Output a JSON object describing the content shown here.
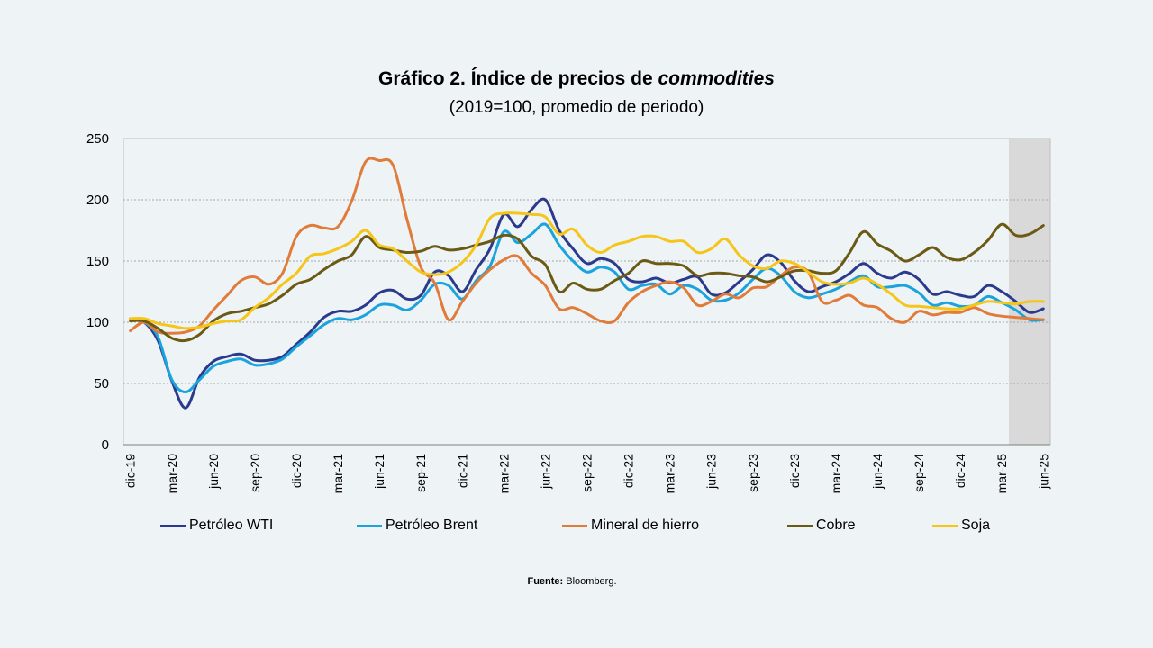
{
  "title_main": "Gráfico 2. Índice de precios de ",
  "title_emph": "commodities",
  "subtitle": "(2019=100, promedio de periodo)",
  "source_label": "Fuente:",
  "source_text": " Bloomberg.",
  "chart_data": {
    "type": "line",
    "title": "Gráfico 2. Índice de precios de commodities",
    "subtitle": "(2019=100, promedio de periodo)",
    "ylim": [
      0,
      250
    ],
    "yticks": [
      0,
      50,
      100,
      150,
      200,
      250
    ],
    "grid": true,
    "legend_position": "bottom",
    "x_tick_labels": [
      "dic-19",
      "mar-20",
      "jun-20",
      "sep-20",
      "dic-20",
      "mar-21",
      "jun-21",
      "sep-21",
      "dic-21",
      "mar-22",
      "jun-22",
      "sep-22",
      "dic-22",
      "mar-23",
      "jun-23",
      "sep-23",
      "dic-23",
      "mar-24",
      "jun-24",
      "sep-24",
      "dic-24",
      "mar-25",
      "jun-25"
    ],
    "x": [
      "dic-19",
      "ene-20",
      "feb-20",
      "mar-20",
      "abr-20",
      "may-20",
      "jun-20",
      "jul-20",
      "ago-20",
      "sep-20",
      "oct-20",
      "nov-20",
      "dic-20",
      "ene-21",
      "feb-21",
      "mar-21",
      "abr-21",
      "may-21",
      "jun-21",
      "jul-21",
      "ago-21",
      "sep-21",
      "oct-21",
      "nov-21",
      "dic-21",
      "ene-22",
      "feb-22",
      "mar-22",
      "abr-22",
      "may-22",
      "jun-22",
      "jul-22",
      "ago-22",
      "sep-22",
      "oct-22",
      "nov-22",
      "dic-22",
      "ene-23",
      "feb-23",
      "mar-23",
      "abr-23",
      "may-23",
      "jun-23",
      "jul-23",
      "ago-23",
      "sep-23",
      "oct-23",
      "nov-23",
      "dic-23",
      "ene-24",
      "feb-24",
      "mar-24",
      "abr-24",
      "may-24",
      "jun-24",
      "jul-24",
      "ago-24",
      "sep-24",
      "oct-24",
      "nov-24",
      "dic-24",
      "ene-25",
      "feb-25",
      "mar-25",
      "abr-25",
      "may-25",
      "jun-25"
    ],
    "shaded_region": {
      "from": "abr-25",
      "to": "jun-25",
      "color": "#d9d9d9"
    },
    "series": [
      {
        "name": "Petróleo WTI",
        "color": "#2b3a8c",
        "values": [
          103,
          100,
          85,
          52,
          30,
          55,
          68,
          72,
          74,
          69,
          69,
          72,
          82,
          92,
          104,
          109,
          109,
          114,
          124,
          126,
          119,
          122,
          141,
          138,
          125,
          143,
          160,
          188,
          178,
          192,
          200,
          175,
          160,
          148,
          152,
          148,
          135,
          133,
          136,
          132,
          135,
          137,
          123,
          124,
          133,
          143,
          155,
          149,
          134,
          125,
          129,
          133,
          140,
          148,
          140,
          136,
          141,
          135,
          123,
          125,
          122,
          121,
          130,
          125,
          117,
          108,
          111
        ]
      },
      {
        "name": "Petróleo Brent",
        "color": "#1aa3dd",
        "values": [
          102,
          100,
          88,
          53,
          43,
          53,
          64,
          68,
          70,
          65,
          66,
          70,
          80,
          89,
          98,
          103,
          102,
          106,
          114,
          114,
          110,
          118,
          131,
          130,
          119,
          134,
          146,
          174,
          165,
          172,
          180,
          163,
          150,
          141,
          145,
          141,
          127,
          130,
          131,
          123,
          130,
          127,
          118,
          118,
          124,
          135,
          144,
          138,
          125,
          120,
          123,
          127,
          133,
          138,
          129,
          129,
          130,
          124,
          114,
          116,
          113,
          114,
          121,
          116,
          110,
          102,
          102
        ]
      },
      {
        "name": "Mineral de hierro",
        "color": "#e07b39",
        "values": [
          93,
          100,
          92,
          91,
          92,
          97,
          110,
          122,
          134,
          137,
          131,
          140,
          170,
          179,
          177,
          178,
          199,
          231,
          232,
          228,
          184,
          145,
          132,
          102,
          117,
          132,
          143,
          151,
          154,
          140,
          130,
          111,
          112,
          107,
          101,
          101,
          116,
          125,
          130,
          133,
          128,
          114,
          117,
          123,
          120,
          128,
          129,
          138,
          145,
          141,
          117,
          118,
          122,
          114,
          112,
          103,
          100,
          109,
          106,
          108,
          108,
          112,
          107,
          105,
          104,
          103,
          102
        ]
      },
      {
        "name": "Cobre",
        "color": "#6b5a14",
        "values": [
          101,
          101,
          95,
          87,
          85,
          90,
          101,
          107,
          109,
          112,
          115,
          122,
          131,
          135,
          143,
          150,
          155,
          170,
          161,
          159,
          157,
          158,
          162,
          159,
          160,
          163,
          166,
          171,
          168,
          154,
          147,
          125,
          132,
          127,
          127,
          134,
          140,
          150,
          148,
          148,
          146,
          138,
          140,
          140,
          138,
          137,
          133,
          137,
          142,
          142,
          140,
          142,
          157,
          174,
          164,
          158,
          150,
          155,
          161,
          153,
          151,
          157,
          167,
          180,
          171,
          172,
          179
        ]
      },
      {
        "name": "Soja",
        "color": "#f5c518",
        "values": [
          103,
          103,
          99,
          97,
          95,
          96,
          99,
          101,
          102,
          112,
          120,
          131,
          140,
          154,
          156,
          160,
          166,
          175,
          163,
          160,
          150,
          141,
          139,
          141,
          149,
          163,
          185,
          189,
          189,
          188,
          186,
          172,
          176,
          163,
          157,
          163,
          166,
          170,
          170,
          166,
          166,
          157,
          160,
          168,
          155,
          146,
          144,
          150,
          148,
          141,
          133,
          131,
          132,
          136,
          131,
          123,
          114,
          113,
          112,
          111,
          111,
          114,
          117,
          116,
          115,
          117,
          117
        ]
      }
    ]
  }
}
